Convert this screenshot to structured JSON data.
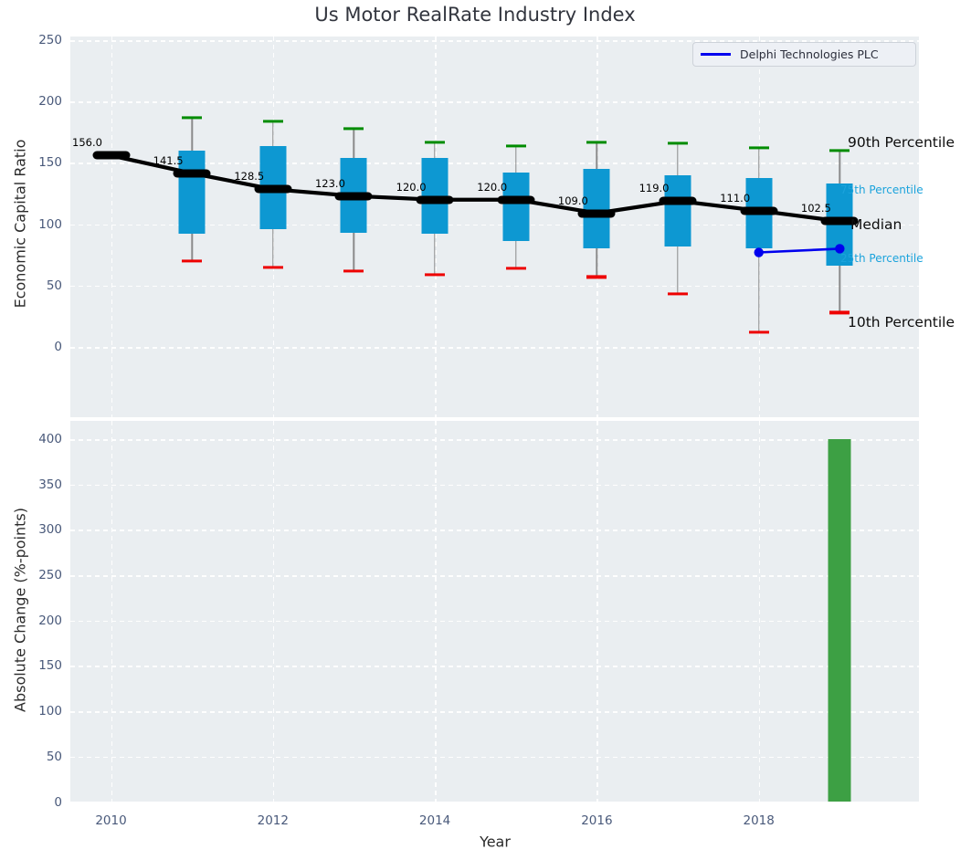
{
  "colors": {
    "box_fill": "#0d98d2",
    "median_and_trend": "#000000",
    "company_line": "#0000ee",
    "whisker": "#8a8a8a",
    "cap_high": "#008c00",
    "cap_low": "#ee0000",
    "bar_fill": "#3da044",
    "panel_bg": "#eaeef1",
    "grid": "#ffffff",
    "tick_label": "#49597a",
    "annotation_minor": "#1ba3dc"
  },
  "chart_data": [
    {
      "type": "boxplot",
      "title": "Us Motor RealRate Industry Index",
      "ylabel": "Economic Capital Ratio",
      "yticks": [
        0,
        50,
        100,
        150,
        200,
        250
      ],
      "ylim": [
        -57,
        253
      ],
      "xlim": [
        2009.5,
        2020.05
      ],
      "grid": true,
      "legend_position": "upper right",
      "boxes": [
        {
          "year": 2010,
          "median": 156.0,
          "median_label": "156.0"
        },
        {
          "year": 2011,
          "p10": 70,
          "p25": 92,
          "median": 141.5,
          "p75": 160,
          "p90": 187,
          "median_label": "141.5"
        },
        {
          "year": 2012,
          "p10": 65,
          "p25": 96,
          "median": 128.5,
          "p75": 164,
          "p90": 184,
          "median_label": "128.5"
        },
        {
          "year": 2013,
          "p10": 62,
          "p25": 93,
          "median": 123.0,
          "p75": 154,
          "p90": 178,
          "median_label": "123.0"
        },
        {
          "year": 2014,
          "p10": 59,
          "p25": 92,
          "median": 120.0,
          "p75": 154,
          "p90": 167,
          "median_label": "120.0"
        },
        {
          "year": 2015,
          "p10": 64,
          "p25": 86,
          "median": 120.0,
          "p75": 142,
          "p90": 164,
          "median_label": "120.0"
        },
        {
          "year": 2016,
          "p10": 57,
          "p25": 80,
          "median": 109.0,
          "p75": 145,
          "p90": 167,
          "median_label": "109.0"
        },
        {
          "year": 2017,
          "p10": 43,
          "p25": 82,
          "median": 119.0,
          "p75": 140,
          "p90": 166,
          "median_label": "119.0"
        },
        {
          "year": 2018,
          "p10": 12,
          "p25": 80,
          "median": 111.0,
          "p75": 138,
          "p90": 162,
          "median_label": "111.0"
        },
        {
          "year": 2019,
          "p10": 28,
          "p25": 66,
          "median": 102.5,
          "p75": 133,
          "p90": 160,
          "median_label": "102.5"
        }
      ],
      "series": [
        {
          "name": "Delphi Technologies PLC",
          "x": [
            2018,
            2019
          ],
          "values": [
            77,
            80
          ]
        }
      ],
      "annotations": [
        {
          "key": "p90",
          "text": "90th Percentile",
          "style": "major"
        },
        {
          "key": "p75",
          "text": "75th Percentile",
          "style": "minor"
        },
        {
          "key": "median",
          "text": "Median",
          "style": "major"
        },
        {
          "key": "p25",
          "text": "25th Percentile",
          "style": "minor"
        },
        {
          "key": "p10",
          "text": "10th Percentile",
          "style": "major"
        }
      ]
    },
    {
      "type": "bar",
      "ylabel": "Absolute Change (%-points)",
      "xlabel": "Year",
      "yticks": [
        0,
        50,
        100,
        150,
        200,
        250,
        300,
        350,
        400
      ],
      "xticks": [
        2010,
        2012,
        2014,
        2016,
        2018
      ],
      "ylim": [
        0,
        420
      ],
      "xlim": [
        2009.5,
        2020.05
      ],
      "grid": true,
      "bars": [
        {
          "year": 2019,
          "value": 400
        }
      ]
    }
  ]
}
